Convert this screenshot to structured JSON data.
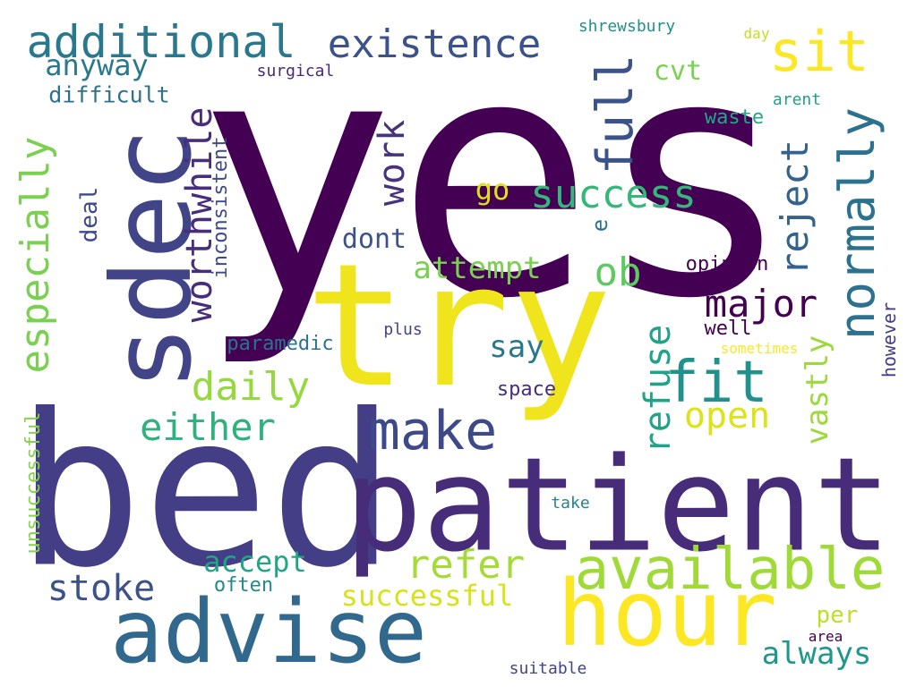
{
  "words": [
    {
      "text": "yes",
      "color": "#440154"
    },
    {
      "text": "bed",
      "color": "#433e85"
    },
    {
      "text": "patient",
      "color": "#472c7a"
    },
    {
      "text": "try",
      "color": "#f0e41c"
    },
    {
      "text": "sdec",
      "color": "#414487"
    },
    {
      "text": "hour",
      "color": "#fde725"
    },
    {
      "text": "advise",
      "color": "#31688e"
    },
    {
      "text": "available",
      "color": "#a0da39"
    },
    {
      "text": "normally",
      "color": "#2c728e"
    },
    {
      "text": "full",
      "color": "#3b528b"
    },
    {
      "text": "sit",
      "color": "#fde725"
    },
    {
      "text": "additional",
      "color": "#2a788e"
    },
    {
      "text": "existence",
      "color": "#3b528b"
    },
    {
      "text": "especially",
      "color": "#7ad151"
    },
    {
      "text": "worthwhile",
      "color": "#472d7b"
    },
    {
      "text": "fit",
      "color": "#21918c"
    },
    {
      "text": "make",
      "color": "#3e4989"
    },
    {
      "text": "success",
      "color": "#35b779"
    },
    {
      "text": "reject",
      "color": "#33638d"
    },
    {
      "text": "work",
      "color": "#46327e"
    },
    {
      "text": "refuse",
      "color": "#20a386"
    },
    {
      "text": "major",
      "color": "#440154"
    },
    {
      "text": "ob",
      "color": "#5ec962"
    },
    {
      "text": "either",
      "color": "#2db27d"
    },
    {
      "text": "daily",
      "color": "#95d840"
    },
    {
      "text": "refer",
      "color": "#a5db36"
    },
    {
      "text": "open",
      "color": "#dde318"
    },
    {
      "text": "vastly",
      "color": "#9bd93c"
    },
    {
      "text": "attempt",
      "color": "#7ad151"
    },
    {
      "text": "stoke",
      "color": "#3b528b"
    },
    {
      "text": "anyway",
      "color": "#2a788e"
    },
    {
      "text": "always",
      "color": "#1f988b"
    },
    {
      "text": "successful",
      "color": "#d8e219"
    },
    {
      "text": "accept",
      "color": "#21a685"
    },
    {
      "text": "say",
      "color": "#2a788e"
    },
    {
      "text": "dont",
      "color": "#3b528b"
    },
    {
      "text": "cvt",
      "color": "#7ad151"
    },
    {
      "text": "go",
      "color": "#dde318"
    },
    {
      "text": "difficult",
      "color": "#2c728e"
    },
    {
      "text": "deal",
      "color": "#3e4a89"
    },
    {
      "text": "inconsistent",
      "color": "#3e4a89"
    },
    {
      "text": "paramedic",
      "color": "#2c728e"
    },
    {
      "text": "opinion",
      "color": "#440154"
    },
    {
      "text": "per",
      "color": "#bddf26"
    },
    {
      "text": "space",
      "color": "#472d7b"
    },
    {
      "text": "well",
      "color": "#440154"
    },
    {
      "text": "often",
      "color": "#23898e"
    },
    {
      "text": "unsuccessful",
      "color": "#86d549"
    },
    {
      "text": "waste",
      "color": "#22a884"
    },
    {
      "text": "however",
      "color": "#433e85"
    },
    {
      "text": "e",
      "color": "#2c728e"
    },
    {
      "text": "shrewsbury",
      "color": "#21918c"
    },
    {
      "text": "surgical",
      "color": "#482878"
    },
    {
      "text": "sometimes",
      "color": "#fde725"
    },
    {
      "text": "plus",
      "color": "#404688"
    },
    {
      "text": "take",
      "color": "#25848e"
    },
    {
      "text": "area",
      "color": "#440154"
    },
    {
      "text": "suitable",
      "color": "#414487"
    },
    {
      "text": "arent",
      "color": "#1fa188"
    },
    {
      "text": "day",
      "color": "#c2df23"
    }
  ]
}
